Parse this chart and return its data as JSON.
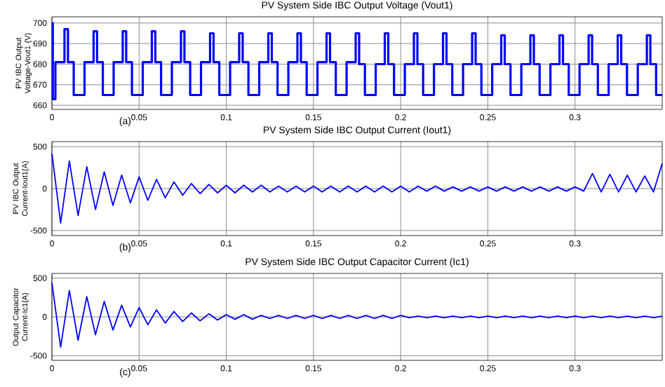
{
  "chart_data": [
    {
      "type": "step",
      "title": "PV System Side IBC Output Voltage (Vout1)",
      "ylabel": "PV IBC Output Voltage-Vout1 (V)",
      "annotations": [
        "(a)"
      ],
      "xlim": [
        0,
        0.35
      ],
      "xticks": [
        0,
        0.05,
        0.1,
        0.15,
        0.2,
        0.25,
        0.3
      ],
      "ylim": [
        658,
        703
      ],
      "yticks": [
        660,
        670,
        680,
        690,
        700
      ],
      "grid": true,
      "series": [
        {
          "color": "#0000ff",
          "x": [
            0,
            0.0005,
            0.002,
            0.0072,
            0.0092,
            0.0125,
            0.0187,
            0.0239,
            0.0259,
            0.0292,
            0.0354,
            0.0406,
            0.0426,
            0.0459,
            0.0521,
            0.0573,
            0.0593,
            0.0626,
            0.0688,
            0.074,
            0.076,
            0.0793,
            0.0855,
            0.0907,
            0.0927,
            0.096,
            0.1022,
            0.1074,
            0.1094,
            0.1127,
            0.1189,
            0.1241,
            0.1261,
            0.1294,
            0.1356,
            0.1408,
            0.1428,
            0.1461,
            0.1523,
            0.1575,
            0.1595,
            0.1628,
            0.169,
            0.1742,
            0.1762,
            0.1795,
            0.1857,
            0.1909,
            0.1929,
            0.1962,
            0.2024,
            0.2076,
            0.2096,
            0.2129,
            0.2191,
            0.2243,
            0.2263,
            0.2296,
            0.2358,
            0.241,
            0.243,
            0.2463,
            0.2525,
            0.2577,
            0.2597,
            0.263,
            0.2692,
            0.2744,
            0.2764,
            0.2797,
            0.2859,
            0.2911,
            0.2931,
            0.2964,
            0.3026,
            0.3078,
            0.3098,
            0.3131,
            0.3193,
            0.3245,
            0.3265,
            0.3298,
            0.336,
            0.3412,
            0.3432,
            0.3465,
            0.35
          ],
          "values": [
            700,
            663,
            681,
            697,
            681,
            665,
            681,
            696,
            681,
            665,
            681,
            696,
            681,
            665,
            681,
            696,
            681,
            665,
            681,
            696,
            681,
            665,
            681,
            695,
            681,
            665,
            681,
            695,
            681,
            665,
            681,
            695,
            681,
            665,
            681,
            695,
            681,
            665,
            681,
            695,
            681,
            665,
            681,
            695,
            680,
            665,
            680,
            695,
            680,
            665,
            680,
            695,
            680,
            665,
            680,
            695,
            680,
            665,
            680,
            695,
            680,
            665,
            680,
            694,
            680,
            665,
            680,
            694,
            680,
            665,
            680,
            694,
            680,
            665,
            680,
            694,
            680,
            665,
            680,
            694,
            680,
            665,
            680,
            694,
            680,
            665,
            665
          ]
        }
      ]
    },
    {
      "type": "line",
      "title": "PV System Side IBC Output Current (Iout1)",
      "ylabel": "PV IBC Output Current-Iout1(A)",
      "annotations": [
        "(b)"
      ],
      "xlim": [
        0,
        0.35
      ],
      "xticks": [
        0,
        0.05,
        0.1,
        0.15,
        0.2,
        0.25,
        0.3
      ],
      "ylim": [
        -560,
        560
      ],
      "yticks": [
        -500,
        0,
        500
      ],
      "grid": true,
      "series": [
        {
          "color": "#0000ff",
          "x": [
            0,
            0.005,
            0.01,
            0.015,
            0.02,
            0.025,
            0.03,
            0.035,
            0.04,
            0.045,
            0.05,
            0.055,
            0.06,
            0.065,
            0.07,
            0.075,
            0.08,
            0.085,
            0.09,
            0.095,
            0.1,
            0.105,
            0.11,
            0.115,
            0.12,
            0.125,
            0.13,
            0.135,
            0.14,
            0.145,
            0.15,
            0.155,
            0.16,
            0.165,
            0.17,
            0.175,
            0.18,
            0.185,
            0.19,
            0.195,
            0.2,
            0.205,
            0.21,
            0.215,
            0.22,
            0.225,
            0.23,
            0.235,
            0.24,
            0.245,
            0.25,
            0.255,
            0.26,
            0.265,
            0.27,
            0.275,
            0.28,
            0.285,
            0.29,
            0.295,
            0.3,
            0.305,
            0.31,
            0.315,
            0.32,
            0.325,
            0.33,
            0.335,
            0.34,
            0.345,
            0.35
          ],
          "values": [
            420,
            -410,
            330,
            -320,
            260,
            -250,
            200,
            -200,
            160,
            -170,
            140,
            -140,
            110,
            -110,
            80,
            -80,
            60,
            -60,
            50,
            -50,
            40,
            -50,
            40,
            -40,
            40,
            -40,
            30,
            -40,
            30,
            -40,
            30,
            -40,
            30,
            -40,
            30,
            -40,
            30,
            -40,
            30,
            -40,
            30,
            -40,
            30,
            -30,
            30,
            -30,
            20,
            -30,
            20,
            -30,
            20,
            -30,
            20,
            -30,
            20,
            -30,
            20,
            -30,
            20,
            -30,
            20,
            -30,
            180,
            -40,
            170,
            -40,
            160,
            -40,
            150,
            -40,
            300
          ]
        }
      ]
    },
    {
      "type": "line",
      "title": "PV System Side IBC Output Capacitor  Current (Ic1)",
      "ylabel": "Output Capacitor Current-Ic1(A)",
      "annotations": [
        "(c)"
      ],
      "xlim": [
        0,
        0.35
      ],
      "xticks": [
        0,
        0.05,
        0.1,
        0.15,
        0.2,
        0.25,
        0.3
      ],
      "ylim": [
        -560,
        560
      ],
      "yticks": [
        -500,
        0,
        500
      ],
      "grid": true,
      "series": [
        {
          "color": "#0000ff",
          "x": [
            0,
            0.005,
            0.01,
            0.015,
            0.02,
            0.025,
            0.03,
            0.035,
            0.04,
            0.045,
            0.05,
            0.055,
            0.06,
            0.065,
            0.07,
            0.075,
            0.08,
            0.085,
            0.09,
            0.095,
            0.1,
            0.105,
            0.11,
            0.115,
            0.12,
            0.125,
            0.13,
            0.135,
            0.14,
            0.145,
            0.15,
            0.155,
            0.16,
            0.165,
            0.17,
            0.175,
            0.18,
            0.185,
            0.19,
            0.195,
            0.2,
            0.205,
            0.21,
            0.215,
            0.22,
            0.225,
            0.23,
            0.235,
            0.24,
            0.245,
            0.25,
            0.255,
            0.26,
            0.265,
            0.27,
            0.275,
            0.28,
            0.285,
            0.29,
            0.295,
            0.3,
            0.305,
            0.31,
            0.315,
            0.32,
            0.325,
            0.33,
            0.335,
            0.34,
            0.345,
            0.35
          ],
          "values": [
            440,
            -390,
            340,
            -300,
            260,
            -230,
            200,
            -170,
            150,
            -130,
            120,
            -100,
            90,
            -80,
            70,
            -60,
            50,
            -50,
            40,
            -40,
            30,
            -30,
            30,
            -30,
            20,
            -20,
            20,
            -20,
            20,
            -20,
            20,
            -20,
            20,
            -20,
            20,
            -20,
            20,
            -20,
            20,
            -20,
            20,
            -10,
            10,
            -10,
            10,
            -10,
            10,
            -10,
            10,
            -10,
            10,
            -10,
            10,
            -10,
            10,
            -10,
            10,
            -10,
            10,
            -10,
            10,
            -10,
            10,
            -10,
            10,
            -10,
            10,
            -10,
            10,
            -10,
            10
          ]
        }
      ]
    }
  ]
}
